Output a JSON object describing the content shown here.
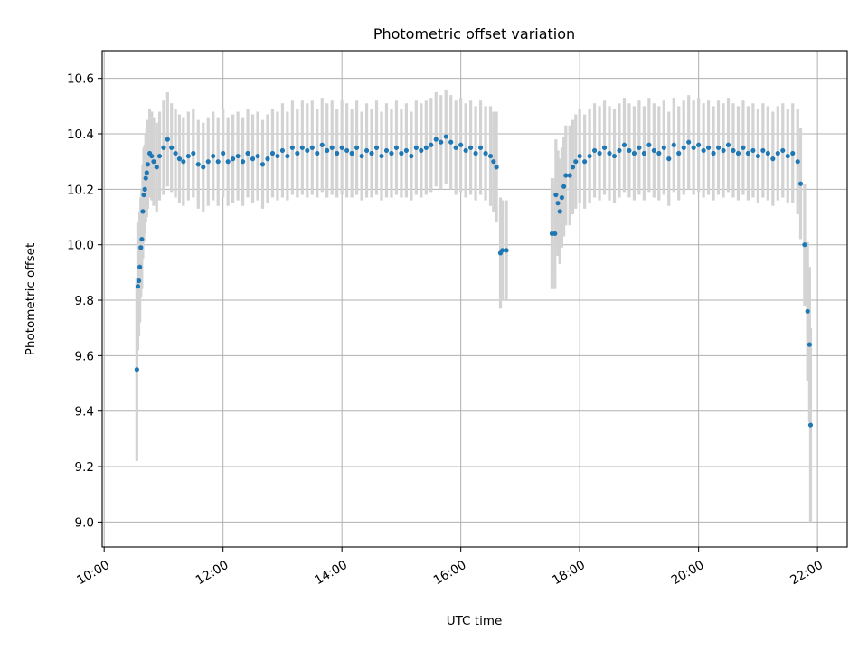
{
  "chart_data": {
    "type": "scatter",
    "title": "Photometric offset variation",
    "xlabel": "UTC time",
    "ylabel": "Photometric offset",
    "x_ticks": [
      "10:00",
      "12:00",
      "14:00",
      "16:00",
      "18:00",
      "20:00",
      "22:00"
    ],
    "y_ticks": [
      "9.0",
      "9.2",
      "9.4",
      "9.6",
      "9.8",
      "10.0",
      "10.2",
      "10.4",
      "10.6"
    ],
    "xlim": [
      "09:58",
      "22:30"
    ],
    "ylim": [
      8.91,
      10.7
    ],
    "grid": true,
    "legend": "none",
    "point_color": "#1f77b4",
    "errorbar_color": "#d3d3d3",
    "series": [
      {
        "points": [
          [
            "10:33",
            9.55,
            0.33
          ],
          [
            "10:34",
            9.85,
            0.23
          ],
          [
            "10:35",
            9.87,
            0.2
          ],
          [
            "10:36",
            9.92,
            0.2
          ],
          [
            "10:37",
            9.99,
            0.18
          ],
          [
            "10:38",
            10.02,
            0.18
          ],
          [
            "10:39",
            10.12,
            0.17
          ],
          [
            "10:40",
            10.18,
            0.17
          ],
          [
            "10:41",
            10.2,
            0.16
          ],
          [
            "10:42",
            10.24,
            0.16
          ],
          [
            "10:43",
            10.26,
            0.16
          ],
          [
            "10:44",
            10.29,
            0.16
          ],
          [
            "10:46",
            10.33,
            0.16
          ],
          [
            "10:48",
            10.32,
            0.16
          ],
          [
            "10:50",
            10.3,
            0.16
          ],
          [
            "10:53",
            10.28,
            0.16
          ],
          [
            "10:56",
            10.32,
            0.16
          ],
          [
            "11:00",
            10.35,
            0.17
          ],
          [
            "11:04",
            10.38,
            0.17
          ],
          [
            "11:08",
            10.35,
            0.16
          ],
          [
            "11:12",
            10.33,
            0.16
          ],
          [
            "11:16",
            10.31,
            0.16
          ],
          [
            "11:20",
            10.3,
            0.16
          ],
          [
            "11:25",
            10.32,
            0.16
          ],
          [
            "11:30",
            10.33,
            0.16
          ],
          [
            "11:35",
            10.29,
            0.16
          ],
          [
            "11:40",
            10.28,
            0.16
          ],
          [
            "11:45",
            10.3,
            0.16
          ],
          [
            "11:50",
            10.32,
            0.16
          ],
          [
            "11:55",
            10.3,
            0.16
          ],
          [
            "12:00",
            10.33,
            0.16
          ],
          [
            "12:05",
            10.3,
            0.16
          ],
          [
            "12:10",
            10.31,
            0.16
          ],
          [
            "12:15",
            10.32,
            0.16
          ],
          [
            "12:20",
            10.3,
            0.16
          ],
          [
            "12:25",
            10.33,
            0.16
          ],
          [
            "12:30",
            10.31,
            0.16
          ],
          [
            "12:35",
            10.32,
            0.16
          ],
          [
            "12:40",
            10.29,
            0.16
          ],
          [
            "12:45",
            10.31,
            0.16
          ],
          [
            "12:50",
            10.33,
            0.16
          ],
          [
            "12:55",
            10.32,
            0.16
          ],
          [
            "13:00",
            10.34,
            0.17
          ],
          [
            "13:05",
            10.32,
            0.16
          ],
          [
            "13:10",
            10.35,
            0.17
          ],
          [
            "13:15",
            10.33,
            0.16
          ],
          [
            "13:20",
            10.35,
            0.17
          ],
          [
            "13:25",
            10.34,
            0.17
          ],
          [
            "13:30",
            10.35,
            0.17
          ],
          [
            "13:35",
            10.33,
            0.16
          ],
          [
            "13:40",
            10.36,
            0.17
          ],
          [
            "13:45",
            10.34,
            0.17
          ],
          [
            "13:50",
            10.35,
            0.17
          ],
          [
            "13:55",
            10.33,
            0.16
          ],
          [
            "14:00",
            10.35,
            0.17
          ],
          [
            "14:05",
            10.34,
            0.17
          ],
          [
            "14:10",
            10.33,
            0.16
          ],
          [
            "14:15",
            10.35,
            0.17
          ],
          [
            "14:20",
            10.32,
            0.16
          ],
          [
            "14:25",
            10.34,
            0.17
          ],
          [
            "14:30",
            10.33,
            0.16
          ],
          [
            "14:35",
            10.35,
            0.17
          ],
          [
            "14:40",
            10.32,
            0.16
          ],
          [
            "14:45",
            10.34,
            0.17
          ],
          [
            "14:50",
            10.33,
            0.16
          ],
          [
            "14:55",
            10.35,
            0.17
          ],
          [
            "15:00",
            10.33,
            0.16
          ],
          [
            "15:05",
            10.34,
            0.17
          ],
          [
            "15:10",
            10.32,
            0.16
          ],
          [
            "15:15",
            10.35,
            0.17
          ],
          [
            "15:20",
            10.34,
            0.17
          ],
          [
            "15:25",
            10.35,
            0.17
          ],
          [
            "15:30",
            10.36,
            0.17
          ],
          [
            "15:35",
            10.38,
            0.17
          ],
          [
            "15:40",
            10.37,
            0.17
          ],
          [
            "15:45",
            10.39,
            0.17
          ],
          [
            "15:50",
            10.37,
            0.17
          ],
          [
            "15:55",
            10.35,
            0.17
          ],
          [
            "16:00",
            10.36,
            0.17
          ],
          [
            "16:05",
            10.34,
            0.17
          ],
          [
            "16:10",
            10.35,
            0.17
          ],
          [
            "16:15",
            10.33,
            0.17
          ],
          [
            "16:20",
            10.35,
            0.17
          ],
          [
            "16:25",
            10.33,
            0.17
          ],
          [
            "16:30",
            10.32,
            0.18
          ],
          [
            "16:33",
            10.3,
            0.18
          ],
          [
            "16:36",
            10.28,
            0.2
          ],
          [
            "16:40",
            9.97,
            0.2
          ],
          [
            "16:42",
            9.98,
            0.18
          ],
          [
            "16:46",
            9.98,
            0.18
          ],
          [
            "17:32",
            10.04,
            0.2
          ],
          [
            "17:35",
            10.04,
            0.2
          ],
          [
            "17:36",
            10.18,
            0.2
          ],
          [
            "17:38",
            10.15,
            0.19
          ],
          [
            "17:40",
            10.12,
            0.19
          ],
          [
            "17:42",
            10.17,
            0.18
          ],
          [
            "17:44",
            10.21,
            0.18
          ],
          [
            "17:46",
            10.25,
            0.18
          ],
          [
            "17:50",
            10.25,
            0.18
          ],
          [
            "17:53",
            10.28,
            0.17
          ],
          [
            "17:56",
            10.3,
            0.17
          ],
          [
            "18:00",
            10.32,
            0.17
          ],
          [
            "18:05",
            10.3,
            0.17
          ],
          [
            "18:10",
            10.32,
            0.17
          ],
          [
            "18:15",
            10.34,
            0.17
          ],
          [
            "18:20",
            10.33,
            0.17
          ],
          [
            "18:25",
            10.35,
            0.17
          ],
          [
            "18:30",
            10.33,
            0.17
          ],
          [
            "18:35",
            10.32,
            0.17
          ],
          [
            "18:40",
            10.34,
            0.17
          ],
          [
            "18:45",
            10.36,
            0.17
          ],
          [
            "18:50",
            10.34,
            0.17
          ],
          [
            "18:55",
            10.33,
            0.17
          ],
          [
            "19:00",
            10.35,
            0.17
          ],
          [
            "19:05",
            10.33,
            0.17
          ],
          [
            "19:10",
            10.36,
            0.17
          ],
          [
            "19:15",
            10.34,
            0.17
          ],
          [
            "19:20",
            10.33,
            0.17
          ],
          [
            "19:25",
            10.35,
            0.17
          ],
          [
            "19:30",
            10.31,
            0.17
          ],
          [
            "19:35",
            10.36,
            0.17
          ],
          [
            "19:40",
            10.33,
            0.17
          ],
          [
            "19:45",
            10.35,
            0.17
          ],
          [
            "19:50",
            10.37,
            0.17
          ],
          [
            "19:55",
            10.35,
            0.17
          ],
          [
            "20:00",
            10.36,
            0.17
          ],
          [
            "20:05",
            10.34,
            0.17
          ],
          [
            "20:10",
            10.35,
            0.17
          ],
          [
            "20:15",
            10.33,
            0.17
          ],
          [
            "20:20",
            10.35,
            0.17
          ],
          [
            "20:25",
            10.34,
            0.17
          ],
          [
            "20:30",
            10.36,
            0.17
          ],
          [
            "20:35",
            10.34,
            0.17
          ],
          [
            "20:40",
            10.33,
            0.17
          ],
          [
            "20:45",
            10.35,
            0.17
          ],
          [
            "20:50",
            10.33,
            0.17
          ],
          [
            "20:55",
            10.34,
            0.17
          ],
          [
            "21:00",
            10.32,
            0.17
          ],
          [
            "21:05",
            10.34,
            0.17
          ],
          [
            "21:10",
            10.33,
            0.17
          ],
          [
            "21:15",
            10.31,
            0.17
          ],
          [
            "21:20",
            10.33,
            0.17
          ],
          [
            "21:25",
            10.34,
            0.17
          ],
          [
            "21:30",
            10.32,
            0.17
          ],
          [
            "21:35",
            10.33,
            0.18
          ],
          [
            "21:40",
            10.3,
            0.19
          ],
          [
            "21:43",
            10.22,
            0.2
          ],
          [
            "21:47",
            10.0,
            0.22
          ],
          [
            "21:50",
            9.76,
            0.25
          ],
          [
            "21:52",
            9.64,
            0.28
          ],
          [
            "21:53",
            9.35,
            0.35
          ]
        ]
      }
    ]
  }
}
